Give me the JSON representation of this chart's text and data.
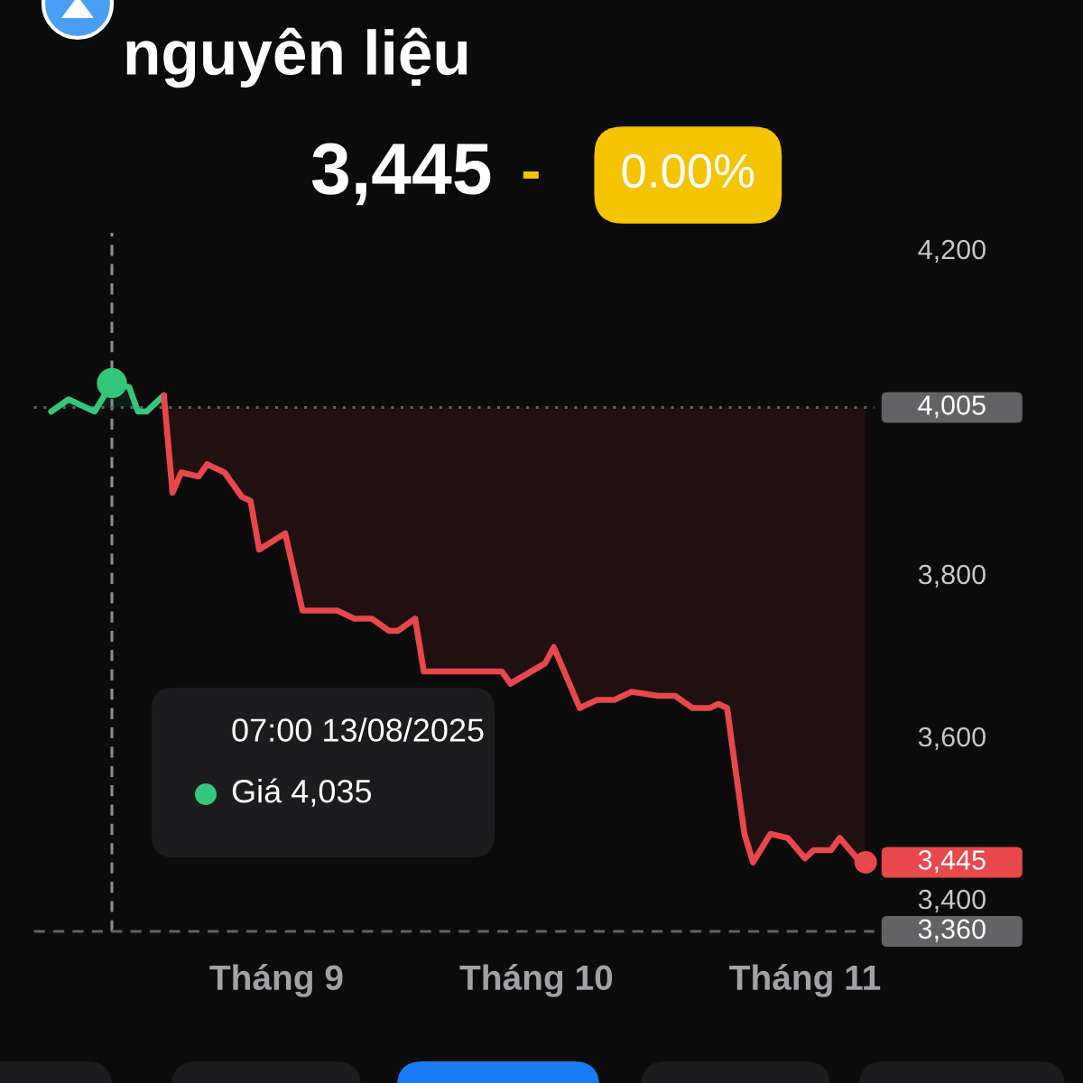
{
  "chart_data": {
    "type": "line",
    "title": "nguyên liệu",
    "subtitle": "3,445",
    "annotations": [
      "-",
      "0.00%",
      "07:00 13/08/2025\nGiá 4,035"
    ],
    "series": [
      {
        "color": "#34c77b",
        "x": [
          "2025-08-06",
          "2025-08-08",
          "2025-08-11",
          "2025-08-13",
          "2025-08-15",
          "2025-08-16",
          "2025-08-17",
          "2025-08-19"
        ],
        "values": [
          4000,
          4015,
          4000,
          4035,
          4030,
          4000,
          4000,
          4020
        ]
      },
      {
        "color": "#e8474c",
        "x": [
          "2025-08-19",
          "2025-08-20",
          "2025-08-21",
          "2025-08-23",
          "2025-08-24",
          "2025-08-26",
          "2025-08-28",
          "2025-08-29",
          "2025-08-30",
          "2025-09-02",
          "2025-09-04",
          "2025-09-08",
          "2025-09-10",
          "2025-09-12",
          "2025-09-14",
          "2025-09-15",
          "2025-09-17",
          "2025-09-18",
          "2025-09-27",
          "2025-09-28",
          "2025-10-02",
          "2025-10-03",
          "2025-10-06",
          "2025-10-08",
          "2025-10-10",
          "2025-10-12",
          "2025-10-15",
          "2025-10-17",
          "2025-10-19",
          "2025-10-21",
          "2025-10-22",
          "2025-10-23",
          "2025-10-25",
          "2025-10-26",
          "2025-10-28",
          "2025-10-30",
          "2025-11-01",
          "2025-11-02",
          "2025-11-04",
          "2025-11-05",
          "2025-11-07",
          "2025-11-08"
        ],
        "values": [
          4020,
          3900,
          3925,
          3920,
          3935,
          3925,
          3895,
          3890,
          3830,
          3850,
          3755,
          3755,
          3745,
          3745,
          3730,
          3730,
          3745,
          3680,
          3680,
          3665,
          3690,
          3710,
          3635,
          3645,
          3645,
          3655,
          3650,
          3650,
          3635,
          3635,
          3640,
          3635,
          3480,
          3445,
          3480,
          3475,
          3450,
          3460,
          3460,
          3475,
          3450,
          3445
        ],
        "value_labels": [
          null,
          null,
          null,
          null,
          null,
          null,
          null,
          null,
          null,
          null,
          null,
          null,
          null,
          null,
          null,
          null,
          null,
          null,
          null,
          null,
          null,
          null,
          null,
          null,
          null,
          null,
          null,
          null,
          null,
          null,
          null,
          null,
          null,
          null,
          null,
          null,
          null,
          null,
          null,
          null,
          null,
          "3,445"
        ]
      }
    ],
    "xlim": [
      "2025-08-04",
      "2025-11-09"
    ],
    "xticks": [
      {
        "value": "2025-09-01",
        "label": "Tháng 9"
      },
      {
        "value": "2025-10-01",
        "label": "Tháng 10"
      },
      {
        "value": "2025-11-01",
        "label": "Tháng 11"
      }
    ],
    "ylim": [
      3360,
      4220
    ],
    "yticks": [
      {
        "value": 3400,
        "label": "3,400"
      },
      {
        "value": 3600,
        "label": "3,600"
      },
      {
        "value": 3800,
        "label": "3,800"
      },
      {
        "value": 4200,
        "label": "4,200"
      }
    ],
    "ref_lines": [
      {
        "axis": "x",
        "value": "2025-08-13",
        "color": "#8e8e93",
        "line_style": "dashed"
      },
      {
        "axis": "y",
        "value": 4005,
        "label": "4,005",
        "color": "#636366",
        "line_style": "dotted"
      },
      {
        "axis": "y",
        "value": 3360,
        "label": "3,360",
        "color": "#636366",
        "line_style": "dashed"
      }
    ]
  }
}
